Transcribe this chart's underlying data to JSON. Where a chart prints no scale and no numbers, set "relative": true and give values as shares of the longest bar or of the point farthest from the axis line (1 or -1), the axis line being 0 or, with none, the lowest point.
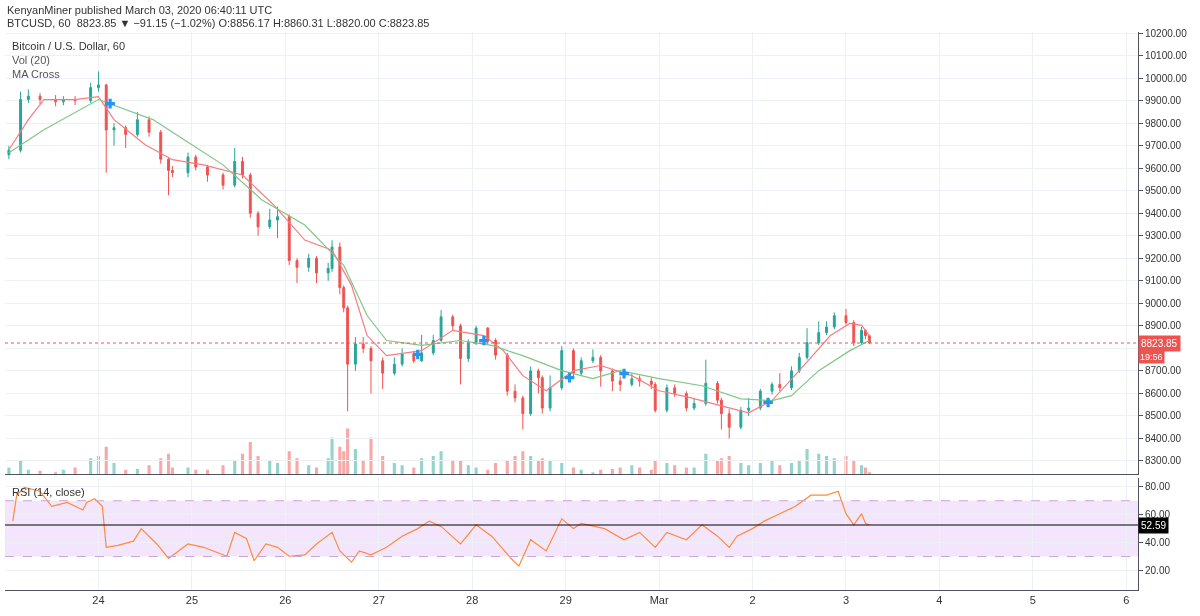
{
  "chart_data": [
    {
      "type": "candlestick",
      "title": "KenyanMiner published March 03, 2020 06:40:11 UTC",
      "subtitle": "BTCUSD, 60  8823.85 ▼ −91.15 (−1.02%) O:8856.17 H:8860.31 L:8820.00 C:8823.85",
      "annotations": [
        "Bitcoin / U.S. Dollar, 60",
        "Vol (20)",
        "MA Cross",
        "19:56"
      ],
      "x": [
        "2020-02-23T01:00",
        "2020-02-23T04:00",
        "2020-02-23T06:00",
        "2020-02-23T09:00",
        "2020-02-23T13:00",
        "2020-02-23T15:00",
        "2020-02-23T18:00",
        "2020-02-23T22:00",
        "2020-02-24T00:00",
        "2020-02-24T02:00",
        "2020-02-24T04:00",
        "2020-02-24T07:00",
        "2020-02-24T10:00",
        "2020-02-24T13:00",
        "2020-02-24T16:00",
        "2020-02-24T18:00",
        "2020-02-24T19:00",
        "2020-02-24T23:00",
        "2020-02-25T01:00",
        "2020-02-25T04:00",
        "2020-02-25T08:00",
        "2020-02-25T11:00",
        "2020-02-25T13:00",
        "2020-02-25T15:00",
        "2020-02-25T17:00",
        "2020-02-25T20:00",
        "2020-02-25T22:00",
        "2020-02-26T01:00",
        "2020-02-26T03:00",
        "2020-02-26T06:00",
        "2020-02-26T08:00",
        "2020-02-26T11:00",
        "2020-02-26T12:00",
        "2020-02-26T14:00",
        "2020-02-26T15:00",
        "2020-02-26T16:00",
        "2020-02-26T18:00",
        "2020-02-26T20:00",
        "2020-02-26T22:00",
        "2020-02-27T01:00",
        "2020-02-27T04:00",
        "2020-02-27T06:00",
        "2020-02-27T09:00",
        "2020-02-27T11:00",
        "2020-02-27T14:00",
        "2020-02-27T16:00",
        "2020-02-27T19:00",
        "2020-02-27T21:00",
        "2020-02-27T23:00",
        "2020-02-28T01:00",
        "2020-02-28T04:00",
        "2020-02-28T06:00",
        "2020-02-28T09:00",
        "2020-02-28T11:00",
        "2020-02-28T13:00",
        "2020-02-28T15:00",
        "2020-02-28T17:00",
        "2020-02-28T18:00",
        "2020-02-28T20:00",
        "2020-02-28T23:00",
        "2020-02-29T02:00",
        "2020-02-29T04:00",
        "2020-02-29T07:00",
        "2020-02-29T09:00",
        "2020-02-29T12:00",
        "2020-02-29T14:00",
        "2020-02-29T17:00",
        "2020-02-29T19:00",
        "2020-02-29T22:00",
        "2020-02-29T23:00",
        "2020-03-01T02:00",
        "2020-03-01T04:00",
        "2020-03-01T07:00",
        "2020-03-01T09:00",
        "2020-03-01T12:00",
        "2020-03-01T15:00",
        "2020-03-01T16:00",
        "2020-03-01T18:00",
        "2020-03-01T21:00",
        "2020-03-01T23:00",
        "2020-03-02T02:00",
        "2020-03-02T05:00",
        "2020-03-02T07:00",
        "2020-03-02T10:00",
        "2020-03-02T12:00",
        "2020-03-02T14:00",
        "2020-03-02T17:00",
        "2020-03-02T19:00",
        "2020-03-02T21:00",
        "2020-03-03T00:00",
        "2020-03-03T02:00",
        "2020-03-03T04:00",
        "2020-03-03T05:00",
        "2020-03-03T06:00"
      ],
      "ohlc": [
        [
          9660,
          9700,
          9640,
          9680
        ],
        [
          9680,
          9940,
          9670,
          9905
        ],
        [
          9905,
          9950,
          9890,
          9920
        ],
        [
          9920,
          9935,
          9885,
          9905
        ],
        [
          9905,
          9925,
          9875,
          9895
        ],
        [
          9895,
          9920,
          9880,
          9905
        ],
        [
          9905,
          9920,
          9880,
          9900
        ],
        [
          9900,
          9980,
          9890,
          9958
        ],
        [
          9958,
          10030,
          9940,
          9970
        ],
        [
          9970,
          9975,
          9580,
          9770
        ],
        [
          9770,
          9800,
          9700,
          9780
        ],
        [
          9780,
          9790,
          9690,
          9750
        ],
        [
          9750,
          9850,
          9740,
          9815
        ],
        [
          9815,
          9830,
          9740,
          9760
        ],
        [
          9760,
          9770,
          9620,
          9640
        ],
        [
          9640,
          9650,
          9480,
          9590
        ],
        [
          9590,
          9610,
          9560,
          9580
        ],
        [
          9580,
          9670,
          9560,
          9650
        ],
        [
          9650,
          9660,
          9590,
          9605
        ],
        [
          9605,
          9615,
          9540,
          9570
        ],
        [
          9570,
          9580,
          9505,
          9525
        ],
        [
          9525,
          9690,
          9515,
          9630
        ],
        [
          9630,
          9650,
          9555,
          9570
        ],
        [
          9570,
          9580,
          9380,
          9400
        ],
        [
          9400,
          9410,
          9300,
          9340
        ],
        [
          9340,
          9420,
          9330,
          9370
        ],
        [
          9370,
          9430,
          9290,
          9385
        ],
        [
          9385,
          9395,
          9170,
          9190
        ],
        [
          9190,
          9200,
          9090,
          9160
        ],
        [
          9160,
          9220,
          9140,
          9200
        ],
        [
          9200,
          9210,
          9090,
          9135
        ],
        [
          9135,
          9180,
          9100,
          9155
        ],
        [
          9155,
          9280,
          9140,
          9250
        ],
        [
          9250,
          9270,
          9040,
          9070
        ],
        [
          9070,
          9080,
          8960,
          8980
        ],
        [
          8980,
          8990,
          8520,
          8730
        ],
        [
          8730,
          8850,
          8700,
          8820
        ],
        [
          8820,
          8850,
          8780,
          8800
        ],
        [
          8800,
          8810,
          8600,
          8745
        ],
        [
          8745,
          8760,
          8620,
          8690
        ],
        [
          8690,
          8760,
          8680,
          8730
        ],
        [
          8730,
          8800,
          8720,
          8775
        ],
        [
          8775,
          8790,
          8735,
          8745
        ],
        [
          8745,
          8860,
          8740,
          8780
        ],
        [
          8780,
          8860,
          8770,
          8835
        ],
        [
          8835,
          8970,
          8830,
          8940
        ],
        [
          8940,
          8950,
          8880,
          8900
        ],
        [
          8900,
          8910,
          8640,
          8755
        ],
        [
          8755,
          8840,
          8740,
          8825
        ],
        [
          8825,
          8900,
          8815,
          8890
        ],
        [
          8890,
          8895,
          8820,
          8835
        ],
        [
          8835,
          8845,
          8750,
          8770
        ],
        [
          8770,
          8780,
          8590,
          8610
        ],
        [
          8610,
          8640,
          8560,
          8580
        ],
        [
          8580,
          8590,
          8440,
          8510
        ],
        [
          8510,
          8720,
          8500,
          8700
        ],
        [
          8700,
          8710,
          8600,
          8670
        ],
        [
          8670,
          8680,
          8510,
          8535
        ],
        [
          8535,
          8680,
          8520,
          8625
        ],
        [
          8625,
          8810,
          8615,
          8790
        ],
        [
          8790,
          8800,
          8670,
          8690
        ],
        [
          8690,
          8760,
          8680,
          8745
        ],
        [
          8745,
          8795,
          8735,
          8760
        ],
        [
          8760,
          8770,
          8630,
          8700
        ],
        [
          8700,
          8710,
          8610,
          8655
        ],
        [
          8655,
          8675,
          8610,
          8640
        ],
        [
          8640,
          8690,
          8630,
          8665
        ],
        [
          8665,
          8680,
          8630,
          8655
        ],
        [
          8655,
          8670,
          8620,
          8640
        ],
        [
          8640,
          8650,
          8515,
          8525
        ],
        [
          8525,
          8640,
          8515,
          8625
        ],
        [
          8625,
          8640,
          8585,
          8600
        ],
        [
          8600,
          8610,
          8520,
          8535
        ],
        [
          8535,
          8580,
          8525,
          8555
        ],
        [
          8555,
          8750,
          8545,
          8645
        ],
        [
          8645,
          8655,
          8555,
          8570
        ],
        [
          8570,
          8580,
          8440,
          8510
        ],
        [
          8510,
          8530,
          8400,
          8450
        ],
        [
          8450,
          8540,
          8440,
          8525
        ],
        [
          8525,
          8580,
          8500,
          8535
        ],
        [
          8535,
          8620,
          8525,
          8610
        ],
        [
          8610,
          8650,
          8595,
          8640
        ],
        [
          8640,
          8690,
          8610,
          8625
        ],
        [
          8625,
          8720,
          8615,
          8700
        ],
        [
          8700,
          8780,
          8690,
          8760
        ],
        [
          8760,
          8890,
          8750,
          8825
        ],
        [
          8825,
          8920,
          8815,
          8870
        ],
        [
          8870,
          8920,
          8860,
          8895
        ],
        [
          8895,
          8960,
          8885,
          8945
        ],
        [
          8945,
          8975,
          8905,
          8915
        ],
        [
          8915,
          8925,
          8810,
          8825
        ],
        [
          8825,
          8895,
          8815,
          8880
        ],
        [
          8880,
          8885,
          8840,
          8856.17
        ],
        [
          8856.17,
          8860.31,
          8820.0,
          8823.85
        ]
      ],
      "colors": [
        "#26a69a",
        "#26a69a",
        "#26a69a",
        "#ef5350",
        "#ef5350",
        "#26a69a",
        "#ef5350",
        "#26a69a",
        "#26a69a",
        "#ef5350",
        "#26a69a",
        "#ef5350",
        "#26a69a",
        "#ef5350",
        "#ef5350",
        "#ef5350",
        "#ef5350",
        "#26a69a",
        "#ef5350",
        "#ef5350",
        "#ef5350",
        "#26a69a",
        "#ef5350",
        "#ef5350",
        "#ef5350",
        "#26a69a",
        "#26a69a",
        "#ef5350",
        "#ef5350",
        "#26a69a",
        "#ef5350",
        "#26a69a",
        "#26a69a",
        "#ef5350",
        "#ef5350",
        "#ef5350",
        "#26a69a",
        "#ef5350",
        "#ef5350",
        "#ef5350",
        "#26a69a",
        "#26a69a",
        "#ef5350",
        "#26a69a",
        "#26a69a",
        "#26a69a",
        "#ef5350",
        "#ef5350",
        "#26a69a",
        "#26a69a",
        "#ef5350",
        "#ef5350",
        "#ef5350",
        "#ef5350",
        "#ef5350",
        "#26a69a",
        "#ef5350",
        "#ef5350",
        "#26a69a",
        "#26a69a",
        "#ef5350",
        "#26a69a",
        "#26a69a",
        "#ef5350",
        "#ef5350",
        "#ef5350",
        "#26a69a",
        "#ef5350",
        "#ef5350",
        "#ef5350",
        "#26a69a",
        "#ef5350",
        "#ef5350",
        "#26a69a",
        "#26a69a",
        "#ef5350",
        "#ef5350",
        "#ef5350",
        "#26a69a",
        "#26a69a",
        "#26a69a",
        "#26a69a",
        "#ef5350",
        "#26a69a",
        "#26a69a",
        "#26a69a",
        "#26a69a",
        "#26a69a",
        "#26a69a",
        "#ef5350",
        "#ef5350",
        "#26a69a",
        "#ef5350",
        "#ef5350"
      ],
      "series": [
        {
          "type": "line",
          "color": "#f77c80",
          "x": [
            "2020-02-23T01:00",
            "2020-02-23T06:00",
            "2020-02-23T10:00",
            "2020-02-23T18:00",
            "2020-02-24T00:00",
            "2020-02-24T04:00",
            "2020-02-24T12:00",
            "2020-02-24T19:00",
            "2020-02-25T03:00",
            "2020-02-25T13:00",
            "2020-02-25T21:00",
            "2020-02-26T05:00",
            "2020-02-26T12:00",
            "2020-02-26T17:00",
            "2020-02-26T21:00",
            "2020-02-27T02:00",
            "2020-02-27T11:00",
            "2020-02-27T19:00",
            "2020-02-28T03:00",
            "2020-02-28T08:00",
            "2020-02-28T13:00",
            "2020-02-28T19:00",
            "2020-02-29T02:00",
            "2020-02-29T09:00",
            "2020-02-29T17:00",
            "2020-03-01T00:00",
            "2020-03-01T08:00",
            "2020-03-01T16:00",
            "2020-03-01T23:00",
            "2020-03-02T05:00",
            "2020-03-02T12:00",
            "2020-03-02T20:00",
            "2020-03-03T01:00",
            "2020-03-03T04:00",
            "2020-03-03T06:00"
          ],
          "values": [
            9682,
            9816,
            9905,
            9905,
            9918,
            9816,
            9704,
            9638,
            9615,
            9570,
            9437,
            9281,
            9236,
            9080,
            8857,
            8768,
            8790,
            8880,
            8857,
            8790,
            8679,
            8612,
            8701,
            8724,
            8679,
            8612,
            8581,
            8545,
            8514,
            8568,
            8701,
            8857,
            8911,
            8902,
            8857
          ]
        },
        {
          "type": "line",
          "color": "#81c784",
          "x": [
            "2020-02-23T01:00",
            "2020-02-23T10:00",
            "2020-02-24T00:00",
            "2020-02-24T14:00",
            "2020-02-24T22:00",
            "2020-02-25T08:00",
            "2020-02-25T18:00",
            "2020-02-26T05:00",
            "2020-02-26T15:00",
            "2020-02-26T21:00",
            "2020-02-27T02:00",
            "2020-02-27T11:00",
            "2020-02-27T21:00",
            "2020-02-28T05:00",
            "2020-02-28T13:00",
            "2020-02-28T23:00",
            "2020-02-29T07:00",
            "2020-02-29T14:00",
            "2020-03-01T00:00",
            "2020-03-01T11:00",
            "2020-03-01T21:00",
            "2020-03-02T05:00",
            "2020-03-02T10:00",
            "2020-03-02T17:00",
            "2020-03-03T01:00",
            "2020-03-03T06:00"
          ],
          "values": [
            9669,
            9771,
            9905,
            9816,
            9727,
            9615,
            9459,
            9348,
            9169,
            8946,
            8835,
            8813,
            8835,
            8813,
            8768,
            8701,
            8666,
            8701,
            8666,
            8634,
            8576,
            8568,
            8590,
            8701,
            8790,
            8835
          ]
        },
        {
          "type": "scatter",
          "color": "#2196f3",
          "marker": "cross",
          "x": [
            "2020-02-24T03:00",
            "2020-02-27T10:00",
            "2020-02-28T03:00",
            "2020-02-29T01:00",
            "2020-02-29T15:00",
            "2020-03-02T04:00"
          ],
          "values": [
            9887,
            8773,
            8835,
            8670,
            8688,
            8560
          ]
        }
      ],
      "xlim": [
        "2020-02-23T00:00",
        "2020-03-06T03:00"
      ],
      "xticks": [
        {
          "value": "2020-02-24",
          "label": null
        },
        {
          "value": "2020-02-25",
          "label": null
        },
        {
          "value": "2020-02-26",
          "label": null
        },
        {
          "value": "2020-02-27",
          "label": null
        },
        {
          "value": "2020-02-28",
          "label": null
        },
        {
          "value": "2020-02-29",
          "label": null
        },
        {
          "value": "2020-03-01",
          "label": null
        },
        {
          "value": "2020-03-02",
          "label": null
        },
        {
          "value": "2020-03-03",
          "label": null
        },
        {
          "value": "2020-03-04",
          "label": null
        },
        {
          "value": "2020-03-05",
          "label": null
        },
        {
          "value": "2020-03-06",
          "label": null
        }
      ],
      "ylim": [
        8240,
        10205
      ],
      "yticks": [
        {
          "value": 8300,
          "label": "8300.00"
        },
        {
          "value": 8400,
          "label": "8400.00"
        },
        {
          "value": 8500,
          "label": "8500.00"
        },
        {
          "value": 8600,
          "label": "8600.00"
        },
        {
          "value": 8700,
          "label": "8700.00"
        },
        {
          "value": 8800,
          "label": null
        },
        {
          "value": 8900,
          "label": "8900.00"
        },
        {
          "value": 9000,
          "label": "9000.00"
        },
        {
          "value": 9100,
          "label": "9100.00"
        },
        {
          "value": 9200,
          "label": "9200.00"
        },
        {
          "value": 9300,
          "label": "9300.00"
        },
        {
          "value": 9400,
          "label": "9400.00"
        },
        {
          "value": 9500,
          "label": "9500.00"
        },
        {
          "value": 9600,
          "label": "9600.00"
        },
        {
          "value": 9700,
          "label": "9700.00"
        },
        {
          "value": 9800,
          "label": "9800.00"
        },
        {
          "value": 9900,
          "label": "9900.00"
        },
        {
          "value": 10000,
          "label": "10000.00"
        },
        {
          "value": 10100,
          "label": "10100.00"
        },
        {
          "value": 10200,
          "label": "10200.00"
        }
      ],
      "ref_lines": [
        {
          "axis": "y",
          "value": 8823.85,
          "label": "8823.85",
          "color": "#ef5350",
          "line_style": "dotted"
        }
      ],
      "grid": true,
      "tick_labels": "y"
    },
    {
      "type": "bar",
      "relative": true,
      "x": [
        "2020-02-23T01:00",
        "2020-02-23T04:00",
        "2020-02-23T06:00",
        "2020-02-23T09:00",
        "2020-02-23T13:00",
        "2020-02-23T15:00",
        "2020-02-23T18:00",
        "2020-02-23T22:00",
        "2020-02-24T00:00",
        "2020-02-24T02:00",
        "2020-02-24T04:00",
        "2020-02-24T07:00",
        "2020-02-24T10:00",
        "2020-02-24T13:00",
        "2020-02-24T16:00",
        "2020-02-24T18:00",
        "2020-02-24T19:00",
        "2020-02-24T23:00",
        "2020-02-25T01:00",
        "2020-02-25T04:00",
        "2020-02-25T08:00",
        "2020-02-25T11:00",
        "2020-02-25T13:00",
        "2020-02-25T15:00",
        "2020-02-25T17:00",
        "2020-02-25T20:00",
        "2020-02-25T22:00",
        "2020-02-26T01:00",
        "2020-02-26T03:00",
        "2020-02-26T06:00",
        "2020-02-26T08:00",
        "2020-02-26T11:00",
        "2020-02-26T12:00",
        "2020-02-26T14:00",
        "2020-02-26T15:00",
        "2020-02-26T16:00",
        "2020-02-26T18:00",
        "2020-02-26T20:00",
        "2020-02-26T22:00",
        "2020-02-27T01:00",
        "2020-02-27T04:00",
        "2020-02-27T06:00",
        "2020-02-27T09:00",
        "2020-02-27T11:00",
        "2020-02-27T14:00",
        "2020-02-27T16:00",
        "2020-02-27T19:00",
        "2020-02-27T21:00",
        "2020-02-27T23:00",
        "2020-02-28T01:00",
        "2020-02-28T04:00",
        "2020-02-28T06:00",
        "2020-02-28T09:00",
        "2020-02-28T11:00",
        "2020-02-28T13:00",
        "2020-02-28T15:00",
        "2020-02-28T17:00",
        "2020-02-28T18:00",
        "2020-02-28T20:00",
        "2020-02-28T23:00",
        "2020-02-29T02:00",
        "2020-02-29T04:00",
        "2020-02-29T07:00",
        "2020-02-29T09:00",
        "2020-02-29T12:00",
        "2020-02-29T14:00",
        "2020-02-29T17:00",
        "2020-02-29T19:00",
        "2020-02-29T22:00",
        "2020-02-29T23:00",
        "2020-03-01T02:00",
        "2020-03-01T04:00",
        "2020-03-01T07:00",
        "2020-03-01T09:00",
        "2020-03-01T12:00",
        "2020-03-01T15:00",
        "2020-03-01T16:00",
        "2020-03-01T18:00",
        "2020-03-01T21:00",
        "2020-03-01T23:00",
        "2020-03-02T02:00",
        "2020-03-02T05:00",
        "2020-03-02T07:00",
        "2020-03-02T10:00",
        "2020-03-02T12:00",
        "2020-03-02T14:00",
        "2020-03-02T17:00",
        "2020-03-02T19:00",
        "2020-03-02T21:00",
        "2020-03-03T00:00",
        "2020-03-03T02:00",
        "2020-03-03T04:00",
        "2020-03-03T05:00",
        "2020-03-03T06:00"
      ],
      "values": [
        0.15,
        0.3,
        0.1,
        0.08,
        0.05,
        0.1,
        0.15,
        0.35,
        0.4,
        0.6,
        0.25,
        0.1,
        0.12,
        0.2,
        0.35,
        0.45,
        0.15,
        0.15,
        0.1,
        0.1,
        0.2,
        0.3,
        0.45,
        0.7,
        0.4,
        0.3,
        0.25,
        0.5,
        0.35,
        0.2,
        0.15,
        0.35,
        0.8,
        0.6,
        0.5,
        1,
        0.55,
        0.3,
        0.8,
        0.4,
        0.25,
        0.2,
        0.15,
        0.35,
        0.4,
        0.5,
        0.3,
        0.3,
        0.2,
        0.15,
        0.1,
        0.25,
        0.3,
        0.4,
        0.5,
        0.4,
        0.3,
        0.35,
        0.3,
        0.25,
        0.15,
        0.1,
        0.05,
        0.1,
        0.12,
        0.15,
        0.2,
        0.15,
        0.1,
        0.3,
        0.25,
        0.2,
        0.15,
        0.15,
        0.45,
        0.3,
        0.35,
        0.4,
        0.25,
        0.2,
        0.25,
        0.3,
        0.2,
        0.25,
        0.3,
        0.55,
        0.45,
        0.4,
        0.35,
        0.4,
        0.3,
        0.2,
        0.15,
        0.05
      ],
      "colors": [
        "#93d5cd",
        "#93d5cd",
        "#93d5cd",
        "#f7a9a7",
        "#f7a9a7",
        "#93d5cd",
        "#f7a9a7",
        "#93d5cd",
        "#93d5cd",
        "#f7a9a7",
        "#93d5cd",
        "#f7a9a7",
        "#93d5cd",
        "#f7a9a7",
        "#f7a9a7",
        "#f7a9a7",
        "#f7a9a7",
        "#93d5cd",
        "#f7a9a7",
        "#f7a9a7",
        "#f7a9a7",
        "#93d5cd",
        "#f7a9a7",
        "#f7a9a7",
        "#f7a9a7",
        "#93d5cd",
        "#93d5cd",
        "#f7a9a7",
        "#f7a9a7",
        "#93d5cd",
        "#f7a9a7",
        "#93d5cd",
        "#93d5cd",
        "#f7a9a7",
        "#f7a9a7",
        "#f7a9a7",
        "#93d5cd",
        "#f7a9a7",
        "#f7a9a7",
        "#f7a9a7",
        "#93d5cd",
        "#93d5cd",
        "#f7a9a7",
        "#93d5cd",
        "#93d5cd",
        "#93d5cd",
        "#f7a9a7",
        "#f7a9a7",
        "#93d5cd",
        "#93d5cd",
        "#f7a9a7",
        "#f7a9a7",
        "#f7a9a7",
        "#f7a9a7",
        "#f7a9a7",
        "#93d5cd",
        "#f7a9a7",
        "#f7a9a7",
        "#93d5cd",
        "#93d5cd",
        "#f7a9a7",
        "#93d5cd",
        "#93d5cd",
        "#f7a9a7",
        "#f7a9a7",
        "#f7a9a7",
        "#93d5cd",
        "#f7a9a7",
        "#f7a9a7",
        "#f7a9a7",
        "#93d5cd",
        "#f7a9a7",
        "#f7a9a7",
        "#93d5cd",
        "#93d5cd",
        "#f7a9a7",
        "#f7a9a7",
        "#f7a9a7",
        "#93d5cd",
        "#93d5cd",
        "#93d5cd",
        "#93d5cd",
        "#f7a9a7",
        "#93d5cd",
        "#93d5cd",
        "#93d5cd",
        "#93d5cd",
        "#93d5cd",
        "#93d5cd",
        "#f7a9a7",
        "#f7a9a7",
        "#93d5cd",
        "#f7a9a7",
        "#f7a9a7"
      ],
      "xlim": [
        "2020-02-23T00:00",
        "2020-03-06T03:00"
      ],
      "tick_labels": false
    },
    {
      "type": "line",
      "color": "#ff8a3d",
      "annotations": [
        "RSI (14, close)"
      ],
      "x": [
        "2020-02-23T02:00",
        "2020-02-23T03:00",
        "2020-02-23T05:00",
        "2020-02-23T09:00",
        "2020-02-23T12:00",
        "2020-02-23T16:00",
        "2020-02-23T20:00",
        "2020-02-23T21:00",
        "2020-02-23T23:00",
        "2020-02-24T01:00",
        "2020-02-24T02:00",
        "2020-02-24T05:00",
        "2020-02-24T09:00",
        "2020-02-24T11:00",
        "2020-02-24T15:00",
        "2020-02-24T18:00",
        "2020-02-24T23:00",
        "2020-02-25T03:00",
        "2020-02-25T09:00",
        "2020-02-25T11:00",
        "2020-02-25T14:00",
        "2020-02-25T16:00",
        "2020-02-25T19:00",
        "2020-02-25T22:00",
        "2020-02-26T01:00",
        "2020-02-26T05:00",
        "2020-02-26T08:00",
        "2020-02-26T12:00",
        "2020-02-26T14:00",
        "2020-02-26T17:00",
        "2020-02-26T19:00",
        "2020-02-26T22:00",
        "2020-02-27T02:00",
        "2020-02-27T06:00",
        "2020-02-27T10:00",
        "2020-02-27T13:00",
        "2020-02-27T16:00",
        "2020-02-27T21:00",
        "2020-02-28T01:00",
        "2020-02-28T05:00",
        "2020-02-28T10:00",
        "2020-02-28T12:00",
        "2020-02-28T15:00",
        "2020-02-28T19:00",
        "2020-02-28T23:00",
        "2020-02-29T02:00",
        "2020-02-29T04:00",
        "2020-02-29T10:00",
        "2020-02-29T15:00",
        "2020-02-29T19:00",
        "2020-02-29T23:00",
        "2020-03-01T02:00",
        "2020-03-01T07:00",
        "2020-03-01T11:00",
        "2020-03-01T15:00",
        "2020-03-01T18:00",
        "2020-03-01T20:00",
        "2020-03-02T00:00",
        "2020-03-02T03:00",
        "2020-03-02T07:00",
        "2020-03-02T11:00",
        "2020-03-02T15:00",
        "2020-03-02T19:00",
        "2020-03-02T22:00",
        "2020-03-03T00:00",
        "2020-03-03T02:00",
        "2020-03-03T04:00",
        "2020-03-03T05:00",
        "2020-03-03T06:00"
      ],
      "values": [
        55.4,
        74,
        79.5,
        76.8,
        66,
        68.8,
        63.4,
        68.8,
        71.4,
        66,
        36.6,
        38,
        41,
        50,
        39,
        28.6,
        39,
        36.6,
        30.2,
        47.3,
        43,
        27,
        39,
        36.6,
        30.2,
        31.2,
        39,
        47.3,
        34,
        26,
        34,
        31.2,
        36.6,
        44.6,
        50,
        55.4,
        51.6,
        39,
        52.7,
        44.6,
        28.6,
        23.2,
        42,
        34,
        57,
        50,
        53.8,
        50,
        42,
        47.3,
        36.6,
        47.3,
        42,
        52.7,
        44.6,
        36.6,
        44.6,
        50,
        55.4,
        60.7,
        66,
        74,
        74,
        76.8,
        60.7,
        52.7,
        60.7,
        53.8,
        52.59
      ],
      "xlim": [
        "2020-02-23T00:00",
        "2020-03-06T03:00"
      ],
      "xticks": [
        {
          "value": "2020-02-24",
          "label": "24"
        },
        {
          "value": "2020-02-25",
          "label": "25"
        },
        {
          "value": "2020-02-26",
          "label": "26"
        },
        {
          "value": "2020-02-27",
          "label": "27"
        },
        {
          "value": "2020-02-28",
          "label": "28"
        },
        {
          "value": "2020-02-29",
          "label": "29"
        },
        {
          "value": "2020-03-01",
          "label": "Mar"
        },
        {
          "value": "2020-03-02",
          "label": "2"
        },
        {
          "value": "2020-03-03",
          "label": "3"
        },
        {
          "value": "2020-03-04",
          "label": "4"
        },
        {
          "value": "2020-03-05",
          "label": "5"
        },
        {
          "value": "2020-03-06",
          "label": "6"
        }
      ],
      "ylim": [
        6,
        86
      ],
      "yticks": [
        {
          "value": 20,
          "label": "20.00"
        },
        {
          "value": 40,
          "label": "40.00"
        },
        {
          "value": 60,
          "label": "60.00"
        },
        {
          "value": 80,
          "label": "80.00"
        }
      ],
      "bands": [
        {
          "axis": "y",
          "from": 30,
          "to": 70,
          "color": "#f3e6fc"
        }
      ],
      "ref_lines": [
        {
          "axis": "y",
          "value": 70,
          "color": "#c9a6d8",
          "line_style": "dashed"
        },
        {
          "axis": "y",
          "value": 30,
          "color": "#c9a6d8",
          "line_style": "dashed"
        },
        {
          "axis": "y",
          "value": 52.59,
          "label": "52.59",
          "color": "#000000",
          "line_style": "solid"
        }
      ],
      "grid": true
    }
  ]
}
